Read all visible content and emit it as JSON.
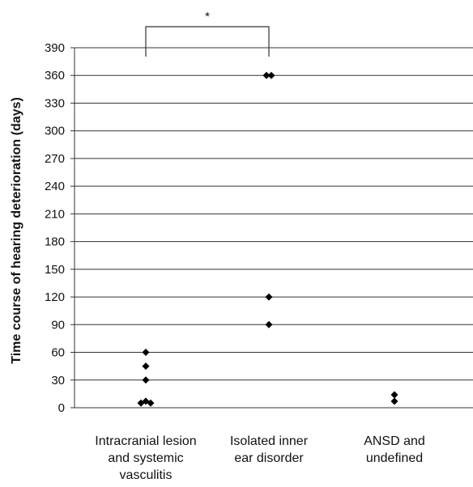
{
  "chart_data": {
    "type": "scatter",
    "ylabel": "Time course of hearing deterioration (days)",
    "xlabel": "",
    "ylim": [
      0,
      390
    ],
    "yticks": [
      0,
      30,
      60,
      90,
      120,
      150,
      180,
      210,
      240,
      270,
      300,
      330,
      360,
      390
    ],
    "grid": true,
    "categories": [
      {
        "lines": [
          "Intracranial lesion",
          "and systemic",
          "vasculitis"
        ]
      },
      {
        "lines": [
          "Isolated inner",
          "ear disorder"
        ]
      },
      {
        "lines": [
          "ANSD and",
          "undefined"
        ]
      }
    ],
    "points": [
      {
        "category": 0,
        "offset": 0,
        "y": 60
      },
      {
        "category": 0,
        "offset": 0,
        "y": 45
      },
      {
        "category": 0,
        "offset": 0,
        "y": 30
      },
      {
        "category": 0,
        "offset": -1,
        "y": 5
      },
      {
        "category": 0,
        "offset": 0,
        "y": 7
      },
      {
        "category": 0,
        "offset": 1,
        "y": 5
      },
      {
        "category": 1,
        "offset": -0.5,
        "y": 360
      },
      {
        "category": 1,
        "offset": 0.5,
        "y": 360
      },
      {
        "category": 1,
        "offset": 0,
        "y": 120
      },
      {
        "category": 1,
        "offset": 0,
        "y": 90
      },
      {
        "category": 2,
        "offset": 0,
        "y": 14
      },
      {
        "category": 2,
        "offset": 0,
        "y": 7
      }
    ],
    "significance": {
      "from": 0,
      "to": 1,
      "label": "*"
    },
    "marker": "diamond",
    "color": "#000000"
  }
}
